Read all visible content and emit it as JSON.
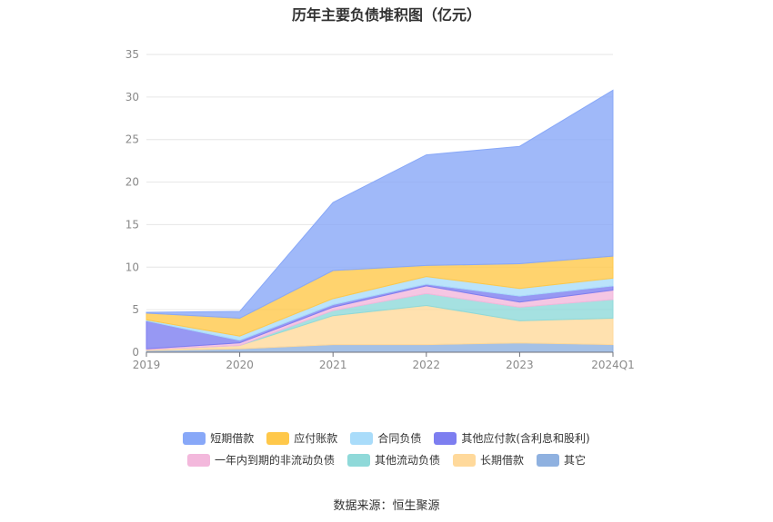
{
  "chart_data": {
    "type": "area",
    "stacked": true,
    "title": "历年主要负债堆积图（亿元）",
    "categories": [
      "2019",
      "2020",
      "2021",
      "2022",
      "2023",
      "2024Q1"
    ],
    "ylim": [
      0,
      35
    ],
    "yticks": [
      0,
      5,
      10,
      15,
      20,
      25,
      30,
      35
    ],
    "grid": true,
    "legend_position": "bottom",
    "series": [
      {
        "name": "其它",
        "color": "#8fb1e0",
        "values": [
          0.2,
          0.4,
          0.9,
          0.9,
          1.1,
          0.9
        ]
      },
      {
        "name": "长期借款",
        "color": "#ffd99b",
        "values": [
          0.1,
          0.4,
          3.4,
          4.6,
          2.6,
          3.1
        ]
      },
      {
        "name": "其他流动负债",
        "color": "#8fd9d9",
        "values": [
          0.0,
          0.0,
          0.6,
          1.4,
          1.6,
          2.2
        ]
      },
      {
        "name": "一年内到期的非流动负债",
        "color": "#f3b8dc",
        "values": [
          0.1,
          0.3,
          0.4,
          0.9,
          0.6,
          1.1
        ]
      },
      {
        "name": "其他应付款(含利息和股利)",
        "color": "#7d7ef0",
        "values": [
          3.3,
          0.3,
          0.3,
          0.2,
          0.7,
          0.5
        ]
      },
      {
        "name": "合同负债",
        "color": "#a9dcfa",
        "values": [
          0.1,
          0.5,
          0.7,
          0.9,
          0.9,
          0.9
        ]
      },
      {
        "name": "应付账款",
        "color": "#ffc84a",
        "values": [
          0.8,
          2.1,
          3.3,
          1.3,
          2.9,
          2.6
        ]
      },
      {
        "name": "短期借款",
        "color": "#88a8f8",
        "values": [
          0.1,
          0.8,
          8.0,
          13.0,
          13.8,
          19.5
        ]
      }
    ],
    "legend_order": [
      [
        "短期借款",
        "应付账款",
        "合同负债",
        "其他应付款(含利息和股利)"
      ],
      [
        "一年内到期的非流动负债",
        "其他流动负债",
        "长期借款",
        "其它"
      ]
    ]
  },
  "source": "数据来源：恒生聚源"
}
